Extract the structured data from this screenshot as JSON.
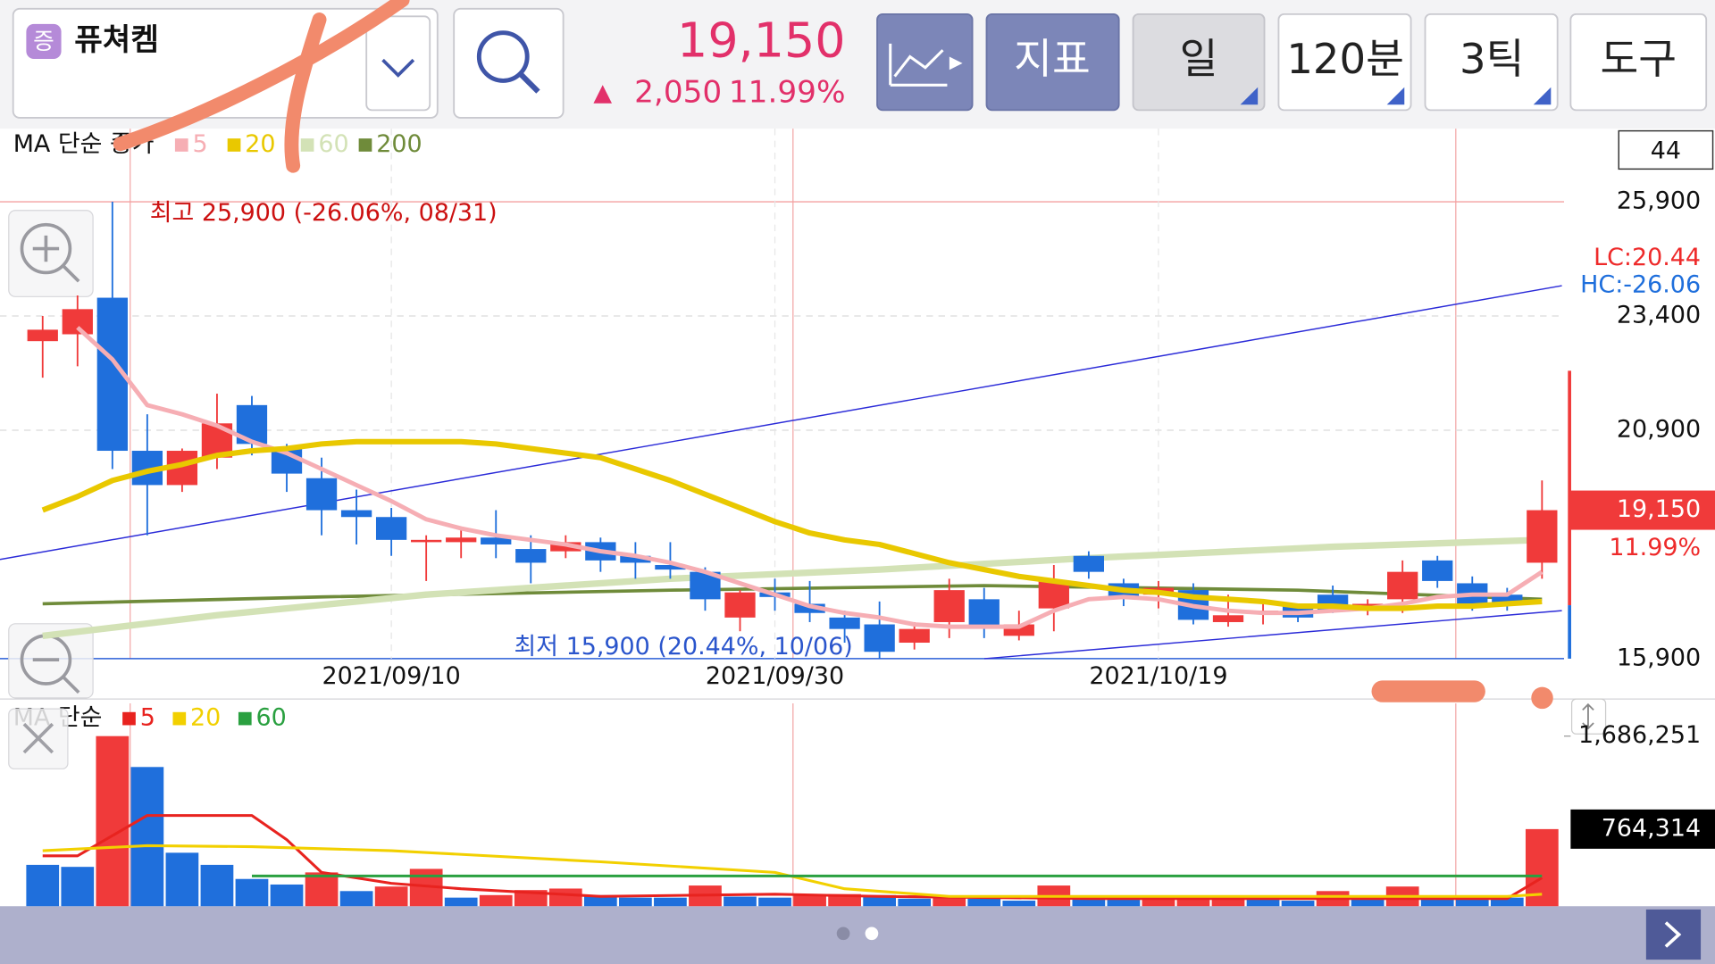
{
  "header": {
    "badge": "증",
    "stock_name": "퓨쳐켐",
    "price": "19,150",
    "change_arrow": "▲",
    "change": "2,050",
    "change_pct": "11.99%"
  },
  "toolbar": {
    "buttons": [
      "지표",
      "일",
      "120분",
      "3틱",
      "도구"
    ]
  },
  "price_chart": {
    "type": "candlestick",
    "legend_title": "MA 단순 종가",
    "count": 44,
    "annotations": {
      "high": "최고 25,900 (-26.06%, 08/31)",
      "low": "최저 15,900 (20.44%, 10/06)",
      "lc": "LC:20.44",
      "hc": "HC:-26.06"
    },
    "categories": [
      null,
      null,
      null,
      null,
      null,
      null,
      null,
      null,
      null,
      null,
      "2021/09/10",
      null,
      null,
      null,
      null,
      null,
      null,
      null,
      null,
      null,
      null,
      "2021/09/30",
      null,
      null,
      null,
      null,
      null,
      null,
      null,
      null,
      null,
      null,
      "2021/10/19",
      null,
      null,
      null,
      null,
      null,
      null,
      null,
      null,
      null,
      null,
      null
    ],
    "open": [
      22850,
      23000,
      23800,
      20450,
      19700,
      20300,
      21450,
      20500,
      19850,
      19150,
      19000,
      18450,
      18450,
      18550,
      18300,
      18250,
      18450,
      18150,
      17950,
      17800,
      16800,
      17350,
      17100,
      16800,
      16650,
      16250,
      16700,
      17200,
      16400,
      17000,
      18150,
      17550,
      17300,
      17400,
      16700,
      16900,
      17050,
      17300,
      16950,
      17200,
      18050,
      17550,
      17300,
      18000
    ],
    "high": [
      23400,
      23850,
      25900,
      21250,
      20500,
      21700,
      21650,
      20600,
      20300,
      19600,
      19200,
      18600,
      18750,
      19150,
      18600,
      18600,
      18550,
      18450,
      18450,
      17900,
      17400,
      17650,
      17600,
      16950,
      17150,
      16700,
      17650,
      17450,
      16950,
      17950,
      18250,
      17650,
      17600,
      17550,
      17300,
      17150,
      17100,
      17500,
      17200,
      18050,
      18150,
      17700,
      17450,
      19800
    ],
    "low": [
      22050,
      22300,
      20050,
      18600,
      19550,
      20050,
      20350,
      19550,
      18600,
      18400,
      18150,
      17600,
      18100,
      18100,
      17550,
      18100,
      17800,
      17650,
      17650,
      16950,
      16500,
      16950,
      16700,
      16250,
      15900,
      16100,
      16350,
      16350,
      16300,
      16500,
      17650,
      17050,
      17000,
      16650,
      16600,
      16650,
      16700,
      16900,
      16850,
      16900,
      17450,
      16950,
      16950,
      17650
    ],
    "close": [
      23100,
      23550,
      20450,
      19700,
      20450,
      21050,
      20600,
      19950,
      19150,
      19000,
      18500,
      18500,
      18550,
      18400,
      18000,
      18450,
      18050,
      18000,
      17850,
      17200,
      17350,
      17250,
      16900,
      16550,
      16050,
      16550,
      17400,
      16600,
      16650,
      17600,
      17800,
      17250,
      17450,
      16750,
      16850,
      16950,
      16800,
      16950,
      17100,
      17800,
      17600,
      17050,
      17100,
      19150
    ],
    "up_color": "#f03a3a",
    "down_color": "#1f6fdc",
    "ylim": [
      15900,
      27500
    ],
    "yticks": [
      {
        "value": 25900,
        "label": "25,900"
      },
      {
        "value": 23400,
        "label": "23,400"
      },
      {
        "value": 20900,
        "label": "20,900"
      },
      {
        "value": 15900,
        "label": "15,900"
      }
    ],
    "current": {
      "value": 19150,
      "label": "19,150"
    },
    "current_pct": "11.99%",
    "ma": [
      {
        "name": "5",
        "color": "#f6aeb4",
        "values": [
          null,
          23150,
          22450,
          21450,
          21250,
          21000,
          20650,
          20400,
          20050,
          19700,
          19350,
          18950,
          18750,
          18600,
          18500,
          18400,
          18250,
          18150,
          18000,
          17800,
          17550,
          17300,
          17050,
          16900,
          16800,
          16650,
          16600,
          16600,
          16600,
          16950,
          17200,
          17250,
          17200,
          17050,
          16950,
          16900,
          16900,
          16950,
          17000,
          17100,
          17250,
          17300,
          17300,
          17800
        ]
      },
      {
        "name": "20",
        "color": "#e9c800",
        "values": [
          19150,
          19450,
          19800,
          20000,
          20150,
          20350,
          20450,
          20500,
          20600,
          20650,
          20650,
          20650,
          20650,
          20600,
          20500,
          20400,
          20300,
          20050,
          19800,
          19500,
          19200,
          18900,
          18650,
          18500,
          18400,
          18200,
          18000,
          17850,
          17700,
          17600,
          17500,
          17400,
          17350,
          17250,
          17200,
          17150,
          17050,
          17050,
          17000,
          17000,
          17050,
          17050,
          17100,
          17150
        ]
      },
      {
        "name": "60",
        "color": "#d3e2b6",
        "x": [
          0,
          5,
          11,
          18,
          24,
          30,
          37,
          43
        ],
        "values": [
          16400,
          16850,
          17300,
          17650,
          17850,
          18100,
          18350,
          18500
        ]
      },
      {
        "name": "200",
        "color": "#6f8b3a",
        "x": [
          0,
          8,
          18,
          27,
          36,
          43
        ],
        "values": [
          17100,
          17250,
          17400,
          17500,
          17400,
          17200
        ]
      }
    ]
  },
  "volume_chart": {
    "type": "bar",
    "legend_title": "MA 단순",
    "values": [
      410000,
      390000,
      1686251,
      1380000,
      530000,
      410000,
      270000,
      215000,
      335000,
      150000,
      195000,
      370000,
      85000,
      110000,
      160000,
      175000,
      110000,
      85000,
      85000,
      205000,
      95000,
      85000,
      120000,
      120000,
      110000,
      75000,
      95000,
      75000,
      55000,
      205000,
      85000,
      65000,
      85000,
      75000,
      75000,
      65000,
      55000,
      150000,
      65000,
      195000,
      75000,
      75000,
      85000,
      764314
    ],
    "colors": [
      "#1f6fdc",
      "#1f6fdc",
      "#f03a3a",
      "#1f6fdc",
      "#1f6fdc",
      "#1f6fdc",
      "#1f6fdc",
      "#1f6fdc",
      "#f03a3a",
      "#1f6fdc",
      "#f03a3a",
      "#f03a3a",
      "#1f6fdc",
      "#f03a3a",
      "#f03a3a",
      "#f03a3a",
      "#1f6fdc",
      "#1f6fdc",
      "#1f6fdc",
      "#f03a3a",
      "#1f6fdc",
      "#1f6fdc",
      "#f03a3a",
      "#f03a3a",
      "#1f6fdc",
      "#1f6fdc",
      "#f03a3a",
      "#1f6fdc",
      "#1f6fdc",
      "#f03a3a",
      "#1f6fdc",
      "#1f6fdc",
      "#f03a3a",
      "#f03a3a",
      "#f03a3a",
      "#1f6fdc",
      "#1f6fdc",
      "#f03a3a",
      "#1f6fdc",
      "#f03a3a",
      "#1f6fdc",
      "#1f6fdc",
      "#1f6fdc",
      "#f03a3a"
    ],
    "ylim": [
      0,
      2000000
    ],
    "yticks": [
      {
        "value": 1686251,
        "label": "1,686,251"
      }
    ],
    "current": {
      "value": 764314,
      "label": "764,314"
    },
    "ma": [
      {
        "name": "5",
        "color": "#e8231f",
        "x": [
          0,
          1,
          2,
          3,
          6,
          7,
          8,
          10,
          12,
          16,
          21,
          24,
          30,
          42,
          43
        ],
        "values": [
          500000,
          500000,
          700000,
          900000,
          900000,
          660000,
          335000,
          227000,
          173000,
          97000,
          119000,
          97000,
          76000,
          76000,
          281000
        ]
      },
      {
        "name": "20",
        "color": "#f2d000",
        "x": [
          0,
          3,
          6,
          10,
          16,
          21,
          23,
          26,
          42,
          43
        ],
        "values": [
          550000,
          600000,
          590000,
          550000,
          440000,
          335000,
          173000,
          97000,
          97000,
          119000
        ]
      },
      {
        "name": "60",
        "color": "#2aa040",
        "x": [
          6,
          43
        ],
        "values": [
          300000,
          300000
        ]
      }
    ]
  }
}
